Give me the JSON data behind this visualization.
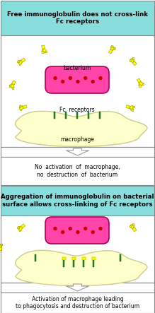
{
  "fig_width": 2.19,
  "fig_height": 4.43,
  "dpi": 100,
  "bg_color": "#ffffff",
  "cyan_color": "#88dddd",
  "panel1_header": "Free immunoglobulin does not cross-link\nFc receptors",
  "panel2_header": "Aggregation of immunoglobulin on bacterial\nsurface allows cross-linking of Fc receptors",
  "text1": "No  activation  of  macrophage,\nno  destruction  of  bacterium",
  "text2": "Activation of macrophage leading\nto phagocytosis and destruction of bacterium",
  "bacterium_color": "#ff44aa",
  "bacterium_edge": "#aa0055",
  "macrophage_color": "#ffffcc",
  "macrophage_edge": "#cccc88",
  "receptor_color": "#228b22",
  "ab_color": "#ffff00",
  "ab_edge": "#999900",
  "dot_color": "#cc0000",
  "arrow_fill": "#ffffff",
  "arrow_edge": "#999999",
  "box_edge": "#888888",
  "label_bacterium1": "bacterium",
  "label_fc": "Fc  receptors",
  "label_macro": "macrophage"
}
